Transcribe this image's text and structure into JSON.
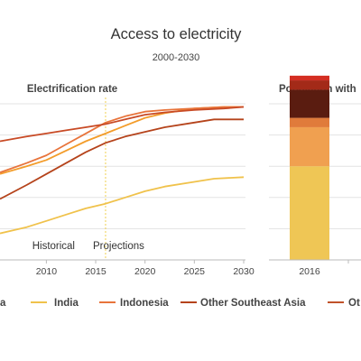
{
  "header": {
    "title": "Access to electricity",
    "subtitle": "2000-2030"
  },
  "panels": {
    "left_title": "Electrification rate",
    "right_title": "Population with"
  },
  "annotations": {
    "historical": "Historical",
    "projections": "Projections"
  },
  "legend": {
    "items": [
      {
        "label": "a",
        "color": "#f39c2a"
      },
      {
        "label": "India",
        "color": "#f0c24b"
      },
      {
        "label": "Indonesia",
        "color": "#e8743b"
      },
      {
        "label": "Other Southeast Asia",
        "color": "#b5431b"
      },
      {
        "label": "Ot",
        "color": "#c0522a"
      }
    ]
  },
  "colors": {
    "guide_line": "#f0d050",
    "axis": "#bbbbbb",
    "grid": "#e3e3e3"
  },
  "chart_data": [
    {
      "type": "line",
      "title": "Electrification rate",
      "x_ticks": [
        2010,
        2015,
        2020,
        2025,
        2030
      ],
      "xlim": [
        2005.3,
        2030
      ],
      "ylim": [
        0,
        100
      ],
      "projection_start": 2016,
      "grid": true,
      "series": [
        {
          "color": "#f39c2a",
          "x": [
            2005.3,
            2008,
            2010,
            2012,
            2014,
            2016,
            2018,
            2020,
            2022,
            2025,
            2028,
            2030
          ],
          "y": [
            55,
            60,
            64,
            70,
            76,
            81,
            86,
            91,
            94,
            97,
            98,
            98
          ]
        },
        {
          "color": "#e8743b",
          "x": [
            2005.3,
            2008,
            2010,
            2012,
            2014,
            2016,
            2018,
            2020,
            2022,
            2025,
            2028,
            2030
          ],
          "y": [
            56,
            62,
            67,
            74,
            81,
            88,
            92,
            95,
            96,
            97,
            98,
            98
          ]
        },
        {
          "color": "#c84a25",
          "x": [
            2005.3,
            2008,
            2010,
            2012,
            2014,
            2016,
            2018,
            2020,
            2022,
            2025,
            2028,
            2030
          ],
          "y": [
            76,
            79,
            81,
            83,
            85,
            87,
            90,
            93,
            94.5,
            96,
            97,
            98
          ]
        },
        {
          "color": "#b5431b",
          "x": [
            2005.3,
            2008,
            2010,
            2012,
            2014,
            2016,
            2018,
            2020,
            2022,
            2025,
            2027,
            2030
          ],
          "y": [
            39,
            48,
            55,
            62,
            69,
            75,
            79,
            82,
            85,
            88,
            90,
            90
          ]
        },
        {
          "color": "#f0c24b",
          "x": [
            2005.3,
            2008,
            2010,
            2012,
            2014,
            2016,
            2018,
            2020,
            2022,
            2025,
            2027,
            2030
          ],
          "y": [
            17,
            21,
            25,
            29,
            33,
            36,
            40,
            44,
            47,
            50,
            52,
            53
          ]
        }
      ]
    },
    {
      "type": "bar",
      "title": "Population with",
      "categories": [
        "2016"
      ],
      "ylim": [
        0,
        100
      ],
      "series": [
        {
          "color": "#efc655",
          "values": [
            60
          ]
        },
        {
          "color": "#f0a050",
          "values": [
            25
          ]
        },
        {
          "color": "#e07b3b",
          "values": [
            6
          ]
        },
        {
          "color": "#5a1c10",
          "values": [
            18
          ]
        },
        {
          "color": "#a32a18",
          "values": [
            6
          ]
        },
        {
          "color": "#d42e22",
          "values": [
            3
          ]
        }
      ]
    }
  ]
}
